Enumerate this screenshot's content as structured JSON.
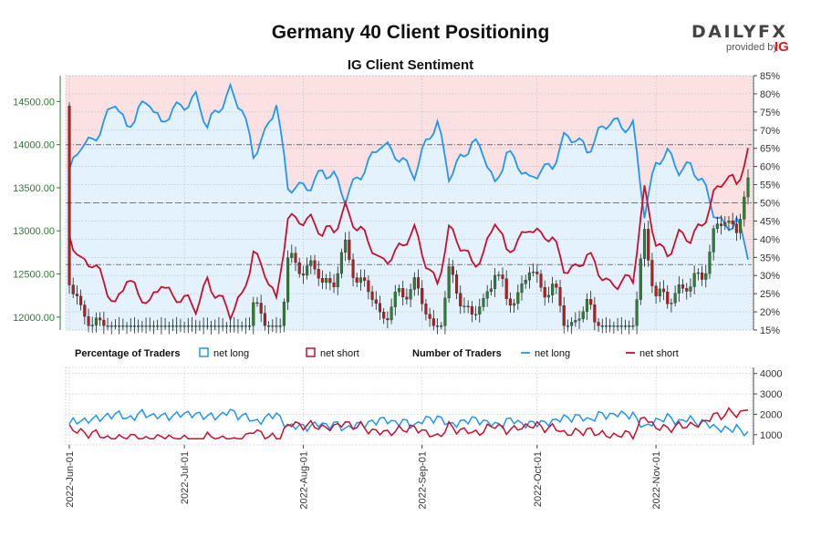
{
  "header": {
    "title": "Germany 40 Client Positioning",
    "subtitle": "IG Client Sentiment",
    "brand": "DAILYFX",
    "brand_sub": "provided by",
    "brand_ig": "IG"
  },
  "colors": {
    "net_long": "#2196f3",
    "net_short": "#c8102e",
    "candle_up": "#2e7d32",
    "candle_down": "#b71c1c",
    "long_fill": "#e3f2fd",
    "short_fill": "#fbe1e1"
  },
  "legend": {
    "pct_title": "Percentage of Traders",
    "num_title": "Number of Traders",
    "net_long": "net long",
    "net_short": "net short"
  },
  "chart_data": [
    {
      "type": "candlestick",
      "name": "Germany 40",
      "ylabel_left": "",
      "ylim_left": [
        11850,
        14800
      ],
      "yticks_left": [
        "12000.00",
        "12500.00",
        "13000.00",
        "13500.00",
        "14000.00",
        "14500.00"
      ],
      "ylim_right": [
        15,
        85
      ],
      "yticks_right": [
        "15%",
        "20%",
        "25%",
        "30%",
        "35%",
        "40%",
        "45%",
        "50%",
        "55%",
        "60%",
        "65%",
        "70%",
        "75%",
        "80%",
        "85%"
      ],
      "reference_lines_pct": [
        33,
        50,
        66
      ],
      "net_long_pct": [
        [
          0,
          57
        ],
        [
          3,
          66
        ],
        [
          6,
          68
        ],
        [
          9,
          72
        ],
        [
          12,
          77
        ],
        [
          15,
          70
        ],
        [
          18,
          77
        ],
        [
          21,
          78
        ],
        [
          24,
          70
        ],
        [
          27,
          76
        ],
        [
          30,
          78
        ],
        [
          33,
          79
        ],
        [
          36,
          70
        ],
        [
          39,
          76
        ],
        [
          42,
          82
        ],
        [
          45,
          76
        ],
        [
          48,
          62
        ],
        [
          51,
          69
        ],
        [
          54,
          79
        ],
        [
          57,
          54
        ],
        [
          60,
          53
        ],
        [
          63,
          55
        ],
        [
          66,
          60
        ],
        [
          69,
          57
        ],
        [
          72,
          50
        ],
        [
          75,
          57
        ],
        [
          78,
          62
        ],
        [
          81,
          66
        ],
        [
          84,
          63
        ],
        [
          87,
          62
        ],
        [
          90,
          59
        ],
        [
          93,
          66
        ],
        [
          96,
          71
        ],
        [
          99,
          58
        ],
        [
          102,
          63
        ],
        [
          105,
          66
        ],
        [
          108,
          63
        ],
        [
          111,
          55
        ],
        [
          114,
          65
        ],
        [
          117,
          60
        ],
        [
          120,
          55
        ],
        [
          123,
          60
        ],
        [
          126,
          61
        ],
        [
          129,
          67
        ],
        [
          132,
          67
        ],
        [
          135,
          65
        ],
        [
          138,
          70
        ],
        [
          141,
          72
        ],
        [
          144,
          70
        ],
        [
          147,
          72
        ],
        [
          150,
          48
        ],
        [
          153,
          60
        ],
        [
          156,
          63
        ],
        [
          159,
          60
        ],
        [
          162,
          61
        ],
        [
          165,
          55
        ],
        [
          168,
          47
        ],
        [
          171,
          44
        ],
        [
          174,
          46
        ],
        [
          177,
          35
        ]
      ],
      "net_short_pct": [
        [
          0,
          43
        ],
        [
          3,
          34
        ],
        [
          6,
          32
        ],
        [
          9,
          28
        ],
        [
          12,
          23
        ],
        [
          15,
          30
        ],
        [
          18,
          23
        ],
        [
          21,
          22
        ],
        [
          24,
          30
        ],
        [
          27,
          24
        ],
        [
          30,
          22
        ],
        [
          33,
          21
        ],
        [
          36,
          30
        ],
        [
          39,
          24
        ],
        [
          42,
          18
        ],
        [
          45,
          24
        ],
        [
          48,
          38
        ],
        [
          51,
          31
        ],
        [
          54,
          21
        ],
        [
          57,
          46
        ],
        [
          60,
          47
        ],
        [
          63,
          45
        ],
        [
          66,
          40
        ],
        [
          69,
          43
        ],
        [
          72,
          50
        ],
        [
          75,
          43
        ],
        [
          78,
          38
        ],
        [
          81,
          34
        ],
        [
          84,
          37
        ],
        [
          87,
          38
        ],
        [
          90,
          41
        ],
        [
          93,
          34
        ],
        [
          96,
          29
        ],
        [
          99,
          42
        ],
        [
          102,
          37
        ],
        [
          105,
          34
        ],
        [
          108,
          37
        ],
        [
          111,
          45
        ],
        [
          114,
          35
        ],
        [
          117,
          40
        ],
        [
          120,
          45
        ],
        [
          123,
          40
        ],
        [
          126,
          39
        ],
        [
          129,
          33
        ],
        [
          132,
          33
        ],
        [
          135,
          35
        ],
        [
          138,
          30
        ],
        [
          141,
          28
        ],
        [
          144,
          30
        ],
        [
          147,
          28
        ],
        [
          150,
          52
        ],
        [
          153,
          40
        ],
        [
          156,
          37
        ],
        [
          159,
          40
        ],
        [
          162,
          39
        ],
        [
          165,
          45
        ],
        [
          168,
          53
        ],
        [
          171,
          56
        ],
        [
          174,
          54
        ],
        [
          177,
          65
        ]
      ]
    },
    {
      "type": "line",
      "name": "Number of Traders",
      "ylim": [
        500,
        4300
      ],
      "yticks": [
        "1000",
        "2000",
        "3000",
        "4000"
      ],
      "x_labels": [
        "2022-Jun-01",
        "2022-Jul-01",
        "2022-Aug-01",
        "2022-Sep-01",
        "2022-Oct-01",
        "2022-Nov-01"
      ]
    }
  ]
}
